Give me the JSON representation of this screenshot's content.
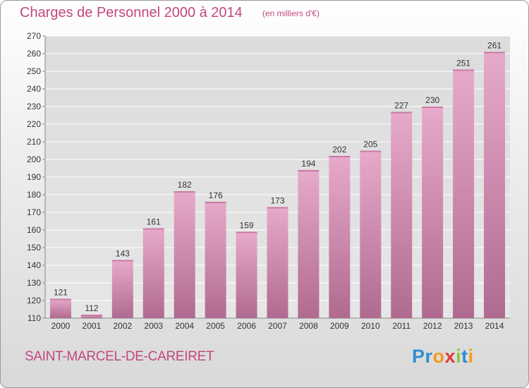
{
  "header": {
    "title": "Charges de Personnel 2000 à 2014",
    "subtitle": "(en milliers d'€)"
  },
  "commune": "SAINT-MARCEL-DE-CAREIRET",
  "logo": {
    "text": "Proxiti",
    "letters": [
      {
        "ch": "P",
        "color": "#2f8fd2"
      },
      {
        "ch": "r",
        "color": "#2f8fd2"
      },
      {
        "ch": "o",
        "color": "#f29a1d"
      },
      {
        "ch": "x",
        "color": "#e23a3a"
      },
      {
        "ch": "i",
        "color": "#8cc63f"
      },
      {
        "ch": "t",
        "color": "#2f8fd2"
      },
      {
        "ch": "i",
        "color": "#f29a1d"
      }
    ]
  },
  "colors": {
    "bar_light": "#e7aacb",
    "bar_dark": "#b06a90",
    "title": "#c3477f",
    "grid": "#ffffff",
    "text": "#333333"
  },
  "chart_data": {
    "type": "bar",
    "categories": [
      "2000",
      "2001",
      "2002",
      "2003",
      "2004",
      "2005",
      "2006",
      "2007",
      "2008",
      "2009",
      "2010",
      "2011",
      "2012",
      "2013",
      "2014"
    ],
    "values": [
      121,
      112,
      143,
      161,
      182,
      176,
      159,
      173,
      194,
      202,
      205,
      227,
      230,
      251,
      261
    ],
    "ylim": [
      110,
      270
    ],
    "yticks": [
      110,
      120,
      130,
      140,
      150,
      160,
      170,
      180,
      190,
      200,
      210,
      220,
      230,
      240,
      250,
      260,
      270
    ],
    "grid": true,
    "title": "Charges de Personnel 2000 à 2014",
    "xlabel": "",
    "ylabel": ""
  }
}
